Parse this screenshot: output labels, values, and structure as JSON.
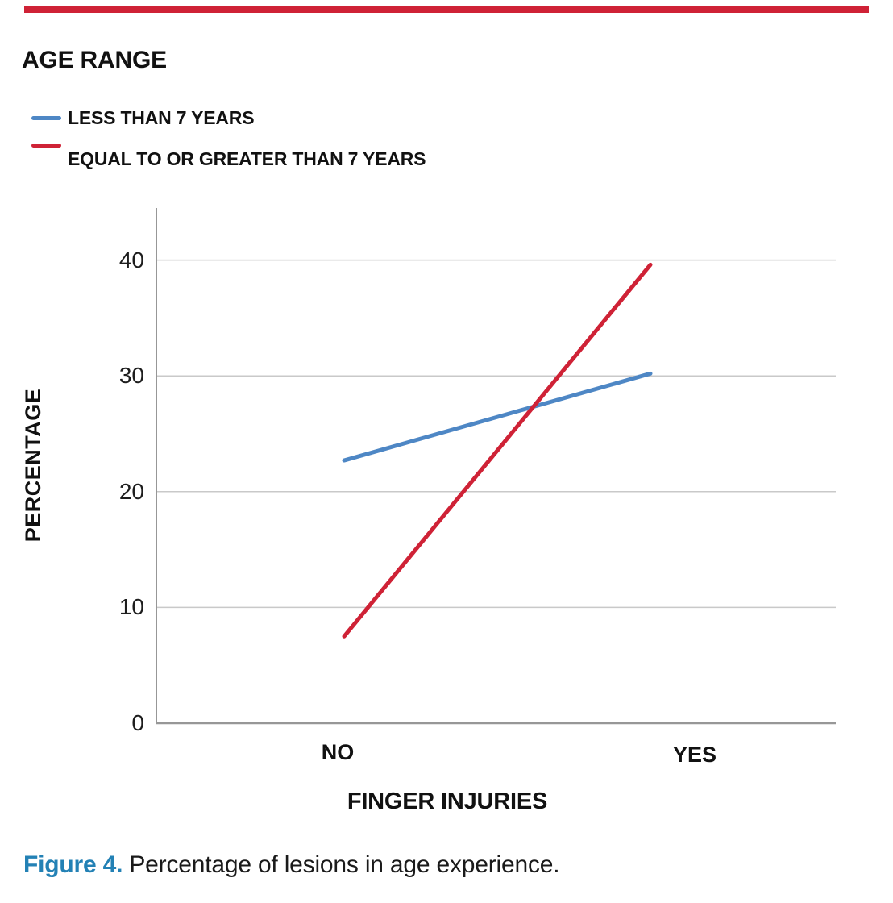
{
  "top_bar": {
    "color": "#cf2236"
  },
  "legend": {
    "title": "AGE RANGE",
    "items": [
      {
        "label": "LESS THAN 7 YEARS",
        "color": "#4e87c5"
      },
      {
        "label": "EQUAL TO OR GREATER THAN 7 YEARS",
        "color": "#cf2236"
      }
    ]
  },
  "chart": {
    "grid_color": "#c9c9c9",
    "axis_color": "#979797",
    "tick_text_color": "#1d1d1d"
  },
  "chart_data": {
    "type": "line",
    "title": "AGE RANGE",
    "categories": [
      "NO",
      "YES"
    ],
    "series": [
      {
        "name": "LESS THAN 7 YEARS",
        "color": "#4e87c5",
        "values": [
          22.7,
          30.2
        ]
      },
      {
        "name": "EQUAL TO OR GREATER THAN 7 YEARS",
        "color": "#cf2236",
        "values": [
          7.5,
          39.6
        ]
      }
    ],
    "xlabel": "FINGER INJURIES",
    "ylabel": "PERCENTAGE",
    "ylim": [
      0,
      44.5
    ],
    "yticks": [
      0,
      10,
      20,
      30,
      40
    ],
    "grid": "horizontal-only",
    "legend_position": "top-left"
  },
  "caption": {
    "label": "Figure 4.",
    "text": " Percentage of lesions in age experience.",
    "label_color": "#2381b5"
  }
}
